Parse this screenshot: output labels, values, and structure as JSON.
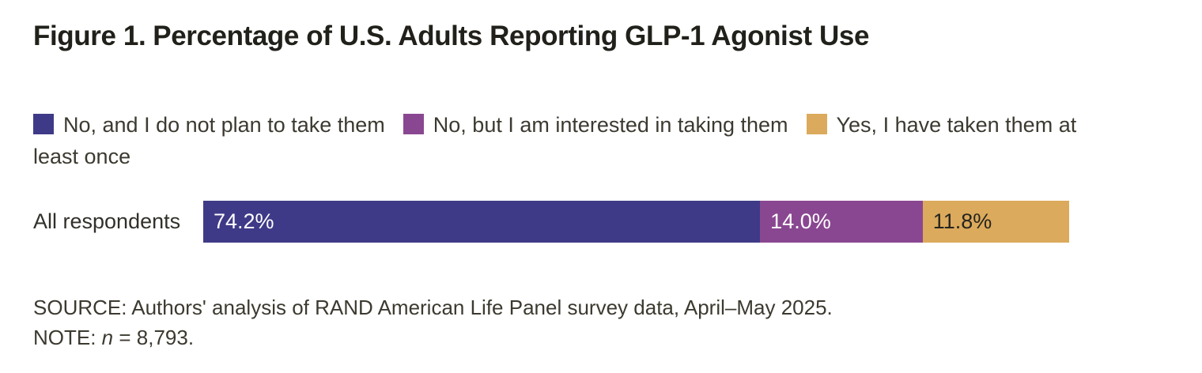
{
  "title": {
    "prefix": "Figure 1.",
    "text": "Percentage of U.S. Adults Reporting GLP-1 Agonist Use"
  },
  "chart_data": {
    "type": "bar",
    "orientation": "horizontal-stacked",
    "title": "Figure 1. Percentage of U.S. Adults Reporting GLP-1 Agonist Use",
    "categories": [
      "All respondents"
    ],
    "series": [
      {
        "name": "No, and I do not plan to take them",
        "values": [
          74.2
        ],
        "label": "74.2%",
        "color": "#3f3a87",
        "label_color": "#ffffff"
      },
      {
        "name": "No, but I am interested in taking them",
        "values": [
          14.0
        ],
        "label": "14.0%",
        "color": "#8a4791",
        "label_color": "#ffffff"
      },
      {
        "name": "Yes, I have taken them at least once",
        "values": [
          11.8
        ],
        "label": "11.8%",
        "color": "#dcaa5c",
        "label_color": "#26251f"
      }
    ],
    "xlim": [
      0,
      100
    ],
    "legend_position": "top",
    "grid": false
  },
  "footer": {
    "source": "SOURCE: Authors' analysis of RAND American Life Panel survey data, April–May 2025.",
    "note_prefix": "NOTE: ",
    "note_var": "n",
    "note_rest": " = 8,793."
  },
  "colors": {
    "background": "#ffffff",
    "title_text": "#21201a",
    "body_text": "#3c3a30"
  }
}
